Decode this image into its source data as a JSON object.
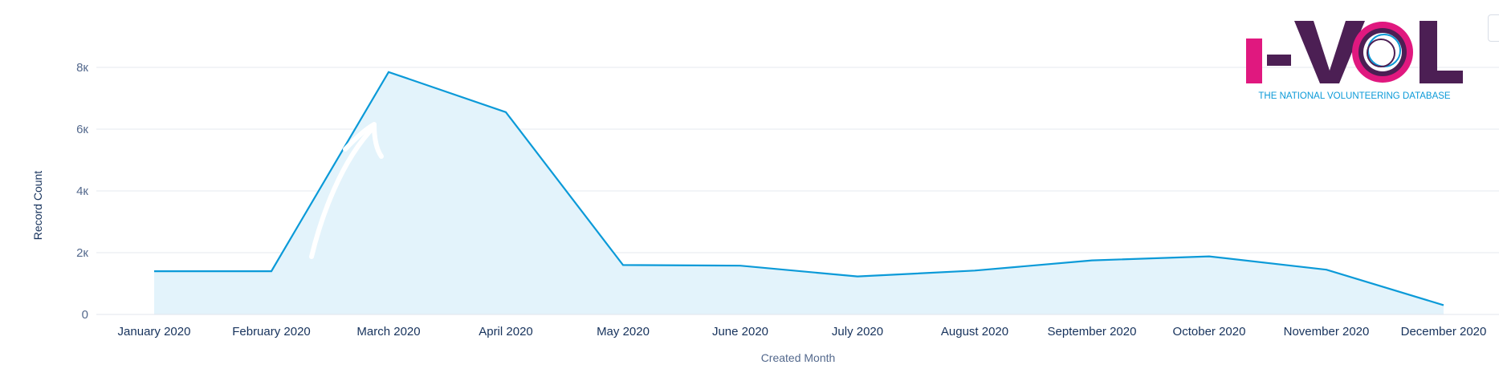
{
  "chart_data": {
    "type": "area",
    "categories": [
      "January 2020",
      "February 2020",
      "March 2020",
      "April 2020",
      "May 2020",
      "June 2020",
      "July 2020",
      "August 2020",
      "September 2020",
      "October 2020",
      "November 2020",
      "December 2020"
    ],
    "series": [
      {
        "values": [
          1400,
          1400,
          7850,
          6550,
          1600,
          1580,
          1230,
          1420,
          1750,
          1880,
          1450,
          300
        ]
      }
    ],
    "xlabel": "Created Month",
    "ylabel": "Record Count",
    "ylim": [
      0,
      8000
    ],
    "yticks": [
      {
        "value": 0,
        "label": "0"
      },
      {
        "value": 2000,
        "label": "2к"
      },
      {
        "value": 4000,
        "label": "4к"
      },
      {
        "value": 6000,
        "label": "6к"
      },
      {
        "value": 8000,
        "label": "8к"
      }
    ],
    "grid": true,
    "colors": {
      "line": "#0b9ad8",
      "fill": "#e3f3fb",
      "grid": "#e4e9ef",
      "baseline": "#e1e6ee"
    }
  },
  "logo": {
    "name": "I-VOL",
    "tagline": "THE NATIONAL VOLUNTEERING DATABASE",
    "colors": {
      "pink": "#e0187f",
      "purple": "#4c1f54",
      "blue": "#0b9ad8"
    }
  },
  "annotation": {
    "icon": "arrow-up-icon",
    "color": "#ffffff"
  }
}
